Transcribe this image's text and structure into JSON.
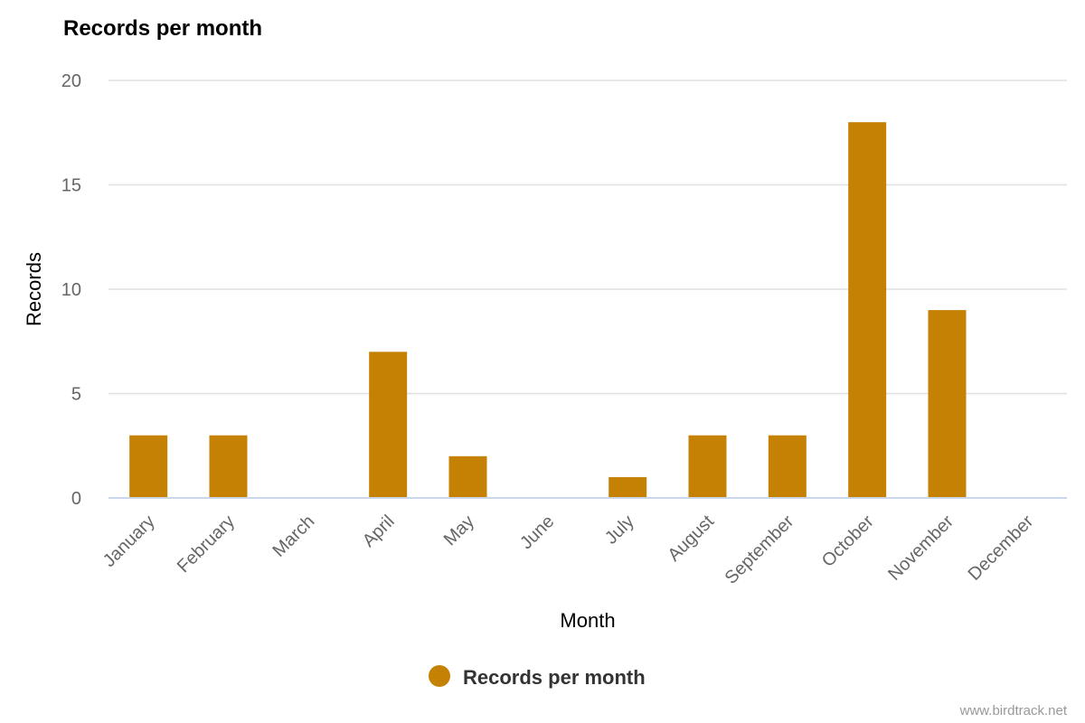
{
  "chart_data": {
    "type": "bar",
    "title": "Records per month",
    "xlabel": "Month",
    "ylabel": "Records",
    "categories": [
      "January",
      "February",
      "March",
      "April",
      "May",
      "June",
      "July",
      "August",
      "September",
      "October",
      "November",
      "December"
    ],
    "series": [
      {
        "name": "Records per month",
        "values": [
          3,
          3,
          0,
          7,
          2,
          0,
          1,
          3,
          3,
          18,
          9,
          0
        ]
      }
    ],
    "ylim": [
      0,
      20
    ],
    "yticks": [
      0,
      5,
      10,
      15,
      20
    ],
    "grid": true,
    "legend_position": "bottom-center",
    "bar_color": "#c48104"
  },
  "credit": "www.birdtrack.net"
}
